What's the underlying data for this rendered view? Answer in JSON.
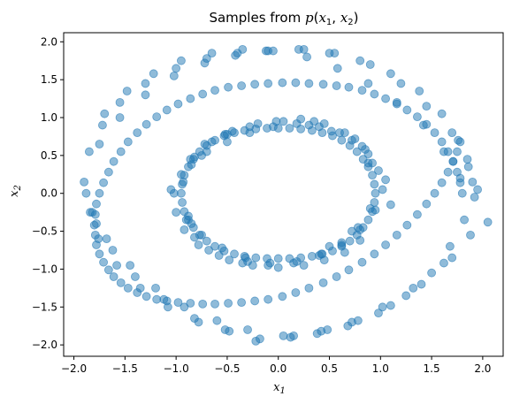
{
  "chart_data": {
    "type": "scatter",
    "title": "Samples from p(x1, x2)",
    "xlabel": "x1",
    "ylabel": "x2",
    "xlim": [
      -2.1,
      2.2
    ],
    "ylim": [
      -2.15,
      2.12
    ],
    "xticks": [
      "−2.0",
      "−1.5",
      "−1.0",
      "−0.5",
      "0.0",
      "0.5",
      "1.0",
      "1.5",
      "2.0"
    ],
    "xtick_values": [
      -2.0,
      -1.5,
      -1.0,
      -0.5,
      0.0,
      0.5,
      1.0,
      1.5,
      2.0
    ],
    "yticks": [
      "−2.0",
      "−1.5",
      "−1.0",
      "−0.5",
      "0.0",
      "0.5",
      "1.0",
      "1.5",
      "2.0"
    ],
    "ytick_values": [
      -2.0,
      -1.5,
      -1.0,
      -0.5,
      0.0,
      0.5,
      1.0,
      1.5,
      2.0
    ],
    "grid": false,
    "marker_color": "#1f77b4",
    "marker_alpha": 0.5,
    "series": [
      {
        "x": [
          1.8,
          1.78,
          1.75,
          1.71,
          1.66,
          1.6,
          1.53,
          1.45,
          1.36,
          1.26,
          1.16,
          1.05,
          0.94,
          0.82,
          0.69,
          0.57,
          0.44,
          0.3,
          0.17,
          0.04,
          -0.1,
          -0.23,
          -0.36,
          -0.49,
          -0.62,
          -0.74,
          -0.86,
          -0.98,
          -1.09,
          -1.19,
          -1.29,
          -1.38,
          -1.47,
          -1.54,
          -1.61,
          -1.66,
          -1.71,
          -1.75,
          -1.78,
          -1.79,
          -1.8,
          -1.79,
          -1.78,
          -1.75,
          -1.71,
          -1.66,
          -1.61,
          -1.54,
          -1.47,
          -1.38,
          -1.29,
          -1.19,
          -1.09,
          -0.98,
          -0.86,
          -0.74,
          -0.62,
          -0.49,
          -0.36,
          -0.23,
          -0.1,
          0.04,
          0.17,
          0.3,
          0.44,
          0.57,
          0.69,
          0.82,
          0.94,
          1.05,
          1.16,
          1.26,
          1.36,
          1.45,
          1.53,
          1.6,
          1.66,
          1.71,
          1.75,
          1.78,
          1.9,
          1.85,
          1.7,
          1.45,
          1.2,
          0.9,
          0.55,
          0.25,
          -0.1,
          -0.4,
          -0.7,
          -1.0,
          -1.3,
          -1.55,
          -1.72,
          -1.85,
          -1.9,
          -1.82,
          -1.68,
          -1.45,
          -1.2,
          -0.92,
          -0.6,
          -0.3,
          0.05,
          0.38,
          0.68,
          0.98,
          1.25,
          1.5,
          1.68,
          1.82,
          1.95,
          2.05,
          1.88,
          1.62,
          1.32,
          1.02,
          0.72,
          0.42,
          0.12,
          -0.22,
          -0.52,
          -0.82,
          -1.12,
          -1.4,
          -1.62,
          -1.78,
          -1.88,
          -1.75,
          -1.55,
          -1.3,
          -1.02,
          -0.72,
          -0.42,
          -0.12,
          0.2,
          0.5,
          0.8,
          1.1,
          1.38,
          1.6,
          1.76,
          1.86,
          1.92,
          1.7,
          1.4,
          1.1,
          0.78,
          0.48,
          0.15,
          -0.18,
          -0.48,
          -0.78,
          -1.08,
          -1.35,
          -1.58,
          -1.76,
          -1.84,
          -1.7,
          -1.48,
          -1.22,
          -0.95,
          -0.65,
          -0.35,
          -0.05,
          0.28,
          0.58,
          0.88,
          1.16,
          1.42,
          1.62,
          1.78
        ],
        "y": [
          0.0,
          0.14,
          0.28,
          0.42,
          0.55,
          0.68,
          0.8,
          0.91,
          1.01,
          1.1,
          1.18,
          1.25,
          1.31,
          1.36,
          1.4,
          1.42,
          1.44,
          1.45,
          1.46,
          1.46,
          1.45,
          1.44,
          1.42,
          1.4,
          1.36,
          1.31,
          1.25,
          1.18,
          1.1,
          1.01,
          0.91,
          0.8,
          0.68,
          0.55,
          0.42,
          0.28,
          0.14,
          0.0,
          -0.14,
          -0.28,
          -0.42,
          -0.55,
          -0.68,
          -0.8,
          -0.91,
          -1.01,
          -1.1,
          -1.18,
          -1.25,
          -1.31,
          -1.36,
          -1.4,
          -1.42,
          -1.44,
          -1.45,
          -1.46,
          -1.46,
          -1.45,
          -1.44,
          -1.42,
          -1.4,
          -1.36,
          -1.31,
          -1.25,
          -1.18,
          -1.1,
          -1.01,
          -0.91,
          -0.8,
          -0.68,
          -0.55,
          -0.42,
          -0.28,
          -0.14,
          0.0,
          0.14,
          0.28,
          0.42,
          0.55,
          0.68,
          0.15,
          0.45,
          0.8,
          1.15,
          1.45,
          1.7,
          1.85,
          1.9,
          1.88,
          1.85,
          1.78,
          1.65,
          1.45,
          1.2,
          0.9,
          0.55,
          0.15,
          -0.25,
          -0.6,
          -0.95,
          -1.25,
          -1.5,
          -1.68,
          -1.8,
          -1.88,
          -1.85,
          -1.75,
          -1.58,
          -1.35,
          -1.05,
          -0.7,
          -0.35,
          0.05,
          -0.38,
          -0.55,
          -0.92,
          -1.25,
          -1.5,
          -1.7,
          -1.82,
          -1.9,
          -1.95,
          -1.8,
          -1.65,
          -1.4,
          -1.1,
          -0.75,
          -0.4,
          0.0,
          0.65,
          1.0,
          1.3,
          1.55,
          1.72,
          1.82,
          1.88,
          1.9,
          1.85,
          1.75,
          1.58,
          1.35,
          1.05,
          0.7,
          0.35,
          -0.05,
          -0.85,
          -1.2,
          -1.48,
          -1.68,
          -1.8,
          -1.88,
          -1.92,
          -1.82,
          -1.7,
          -1.5,
          -1.25,
          -0.95,
          -0.6,
          -0.25,
          1.05,
          1.35,
          1.58,
          1.75,
          1.85,
          1.9,
          1.88,
          1.8,
          1.65,
          1.45,
          1.2,
          0.9,
          0.55,
          0.2
        ]
      },
      {
        "x": [
          0.95,
          0.94,
          0.92,
          0.88,
          0.83,
          0.77,
          0.7,
          0.62,
          0.53,
          0.43,
          0.33,
          0.22,
          0.11,
          0.0,
          -0.11,
          -0.22,
          -0.33,
          -0.43,
          -0.53,
          -0.62,
          -0.7,
          -0.77,
          -0.83,
          -0.88,
          -0.92,
          -0.94,
          -0.95,
          -0.94,
          -0.92,
          -0.88,
          -0.83,
          -0.77,
          -0.7,
          -0.62,
          -0.53,
          -0.43,
          -0.33,
          -0.22,
          -0.11,
          0.0,
          0.11,
          0.22,
          0.33,
          0.43,
          0.53,
          0.62,
          0.7,
          0.77,
          0.83,
          0.88,
          0.92,
          0.94,
          1.02,
          0.98,
          0.88,
          0.72,
          0.52,
          0.3,
          0.05,
          -0.2,
          -0.45,
          -0.65,
          -0.82,
          -0.95,
          -1.02,
          -1.0,
          -0.92,
          -0.78,
          -0.58,
          -0.35,
          -0.1,
          0.15,
          0.4,
          0.62,
          0.8,
          0.95,
          0.85,
          0.75,
          0.6,
          0.4,
          0.18,
          -0.05,
          -0.28,
          -0.5,
          -0.7,
          -0.85,
          -0.93,
          -0.88,
          -0.75,
          -0.55,
          -0.32,
          -0.08,
          0.18,
          0.42,
          0.62,
          0.78,
          0.9,
          1.05,
          0.8,
          0.65,
          0.45,
          0.25,
          0.0,
          -0.25,
          -0.48,
          -0.68,
          -0.82,
          -0.9,
          -0.86,
          -0.72,
          -0.52,
          -0.28,
          -0.02,
          0.22,
          0.45,
          0.65,
          0.82,
          0.92,
          1.1,
          -1.05,
          0.5,
          -0.5,
          0.35,
          -0.3,
          0.72,
          -0.75,
          0.88,
          -0.85
        ],
        "y": [
          0.0,
          0.12,
          0.24,
          0.35,
          0.45,
          0.55,
          0.63,
          0.7,
          0.76,
          0.8,
          0.83,
          0.85,
          0.86,
          0.86,
          0.86,
          0.85,
          0.83,
          0.8,
          0.76,
          0.7,
          0.63,
          0.55,
          0.45,
          0.35,
          0.24,
          0.12,
          0.0,
          -0.12,
          -0.24,
          -0.35,
          -0.45,
          -0.55,
          -0.63,
          -0.7,
          -0.76,
          -0.8,
          -0.83,
          -0.85,
          -0.86,
          -0.86,
          -0.86,
          -0.85,
          -0.83,
          -0.8,
          -0.76,
          -0.7,
          -0.63,
          -0.55,
          -0.45,
          -0.35,
          -0.24,
          -0.12,
          0.05,
          0.3,
          0.52,
          0.7,
          0.82,
          0.9,
          0.95,
          0.92,
          0.82,
          0.68,
          0.48,
          0.25,
          0.0,
          -0.25,
          -0.48,
          -0.68,
          -0.82,
          -0.92,
          -0.95,
          -0.92,
          -0.82,
          -0.68,
          -0.48,
          -0.22,
          0.58,
          0.72,
          0.8,
          0.88,
          0.92,
          0.88,
          0.8,
          0.68,
          0.55,
          0.38,
          0.15,
          -0.3,
          -0.55,
          -0.72,
          -0.85,
          -0.92,
          -0.9,
          -0.8,
          -0.65,
          -0.45,
          -0.2,
          0.18,
          -0.62,
          -0.78,
          -0.88,
          -0.95,
          -0.98,
          -0.95,
          -0.88,
          -0.75,
          -0.58,
          -0.35,
          0.45,
          0.65,
          0.78,
          0.88,
          0.95,
          0.98,
          0.92,
          0.8,
          0.62,
          0.4,
          -0.15,
          0.05,
          -0.7,
          0.78,
          0.95,
          -0.9,
          -0.5,
          0.5,
          0.4,
          -0.4
        ]
      }
    ]
  }
}
